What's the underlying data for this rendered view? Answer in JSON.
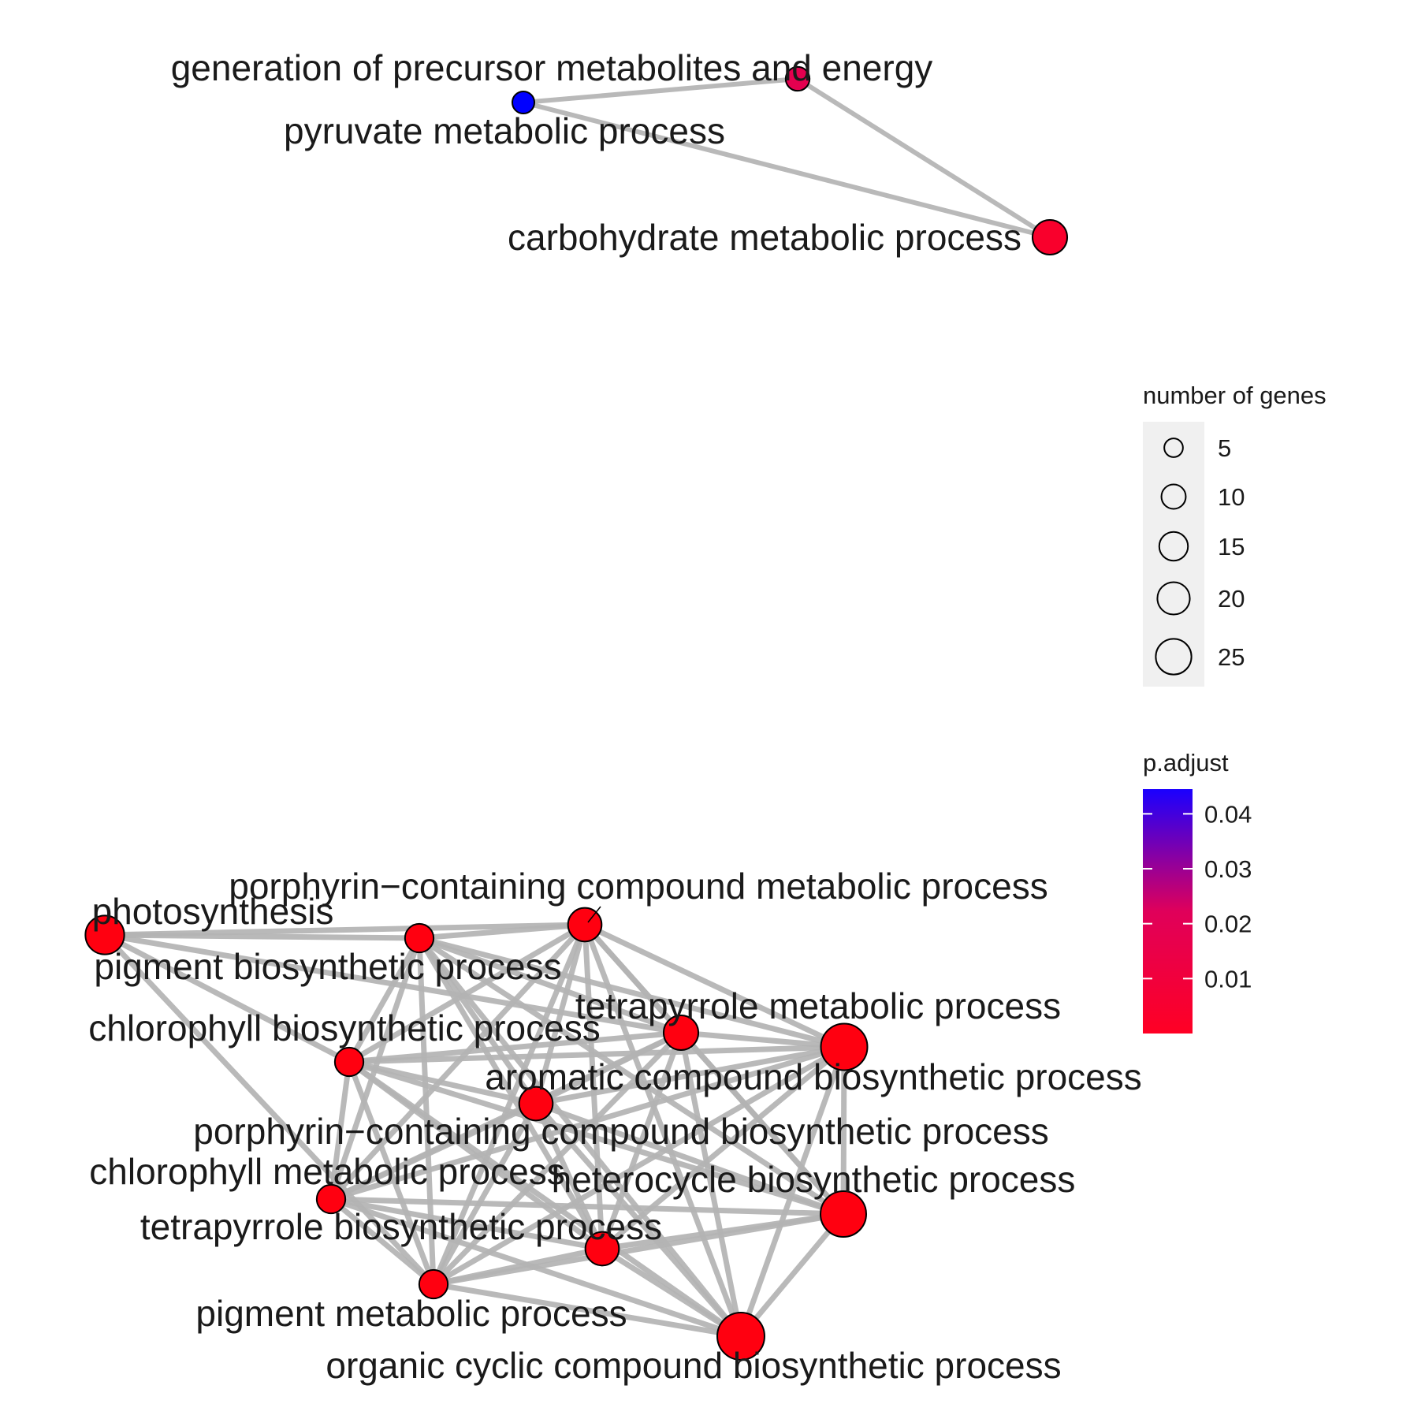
{
  "colors": {
    "edge": "#b3b3b3",
    "node_stroke": "#000000",
    "label": "#1a1a1a",
    "legend_key_bg": "#f0f0f0",
    "gradient_low": "#ff0024",
    "gradient_mid": "#e0005a",
    "gradient_high": "#1a00ff"
  },
  "graph": {
    "nodes": [
      {
        "id": "gen",
        "label": "generation of precursor metabolites and energy",
        "genes": 5,
        "p_adjust": 0.011,
        "color": "#e4004f"
      },
      {
        "id": "pyr",
        "label": "pyruvate metabolic process",
        "genes": 4,
        "p_adjust": 0.044,
        "color": "#0000ff"
      },
      {
        "id": "carb",
        "label": "carbohydrate metabolic process",
        "genes": 13,
        "p_adjust": 0.003,
        "color": "#f9002c"
      },
      {
        "id": "phot",
        "label": "photosynthesis",
        "genes": 17,
        "p_adjust": 0.001,
        "color": "#ff0010"
      },
      {
        "id": "porph_met",
        "label": "porphyrin−containing compound metabolic process",
        "genes": 12,
        "p_adjust": 0.001,
        "color": "#ff0010"
      },
      {
        "id": "pig_bio",
        "label": "pigment biosynthetic process",
        "genes": 8,
        "p_adjust": 0.001,
        "color": "#ff0010"
      },
      {
        "id": "tetra_met",
        "label": "tetrapyrrole metabolic process",
        "genes": 13,
        "p_adjust": 0.001,
        "color": "#ff0010"
      },
      {
        "id": "chl_bio",
        "label": "chlorophyll biosynthetic process",
        "genes": 8,
        "p_adjust": 0.001,
        "color": "#ff0010"
      },
      {
        "id": "aro_bio",
        "label": "aromatic compound biosynthetic process",
        "genes": 26,
        "p_adjust": 0.001,
        "color": "#ff0010"
      },
      {
        "id": "porph_bio",
        "label": "porphyrin−containing compound biosynthetic process",
        "genes": 12,
        "p_adjust": 0.001,
        "color": "#ff0010"
      },
      {
        "id": "chl_met",
        "label": "chlorophyll metabolic process",
        "genes": 8,
        "p_adjust": 0.001,
        "color": "#ff0010"
      },
      {
        "id": "het_bio",
        "label": "heterocycle biosynthetic process",
        "genes": 25,
        "p_adjust": 0.001,
        "color": "#ff0010"
      },
      {
        "id": "tetra_bio",
        "label": "tetrapyrrole biosynthetic process",
        "genes": 12,
        "p_adjust": 0.001,
        "color": "#ff0010"
      },
      {
        "id": "pig_met",
        "label": "pigment metabolic process",
        "genes": 8,
        "p_adjust": 0.001,
        "color": "#ff0010"
      },
      {
        "id": "org_bio",
        "label": "organic cyclic compound biosynthetic process",
        "genes": 27,
        "p_adjust": 0.001,
        "color": "#ff0010"
      }
    ],
    "edges": [
      [
        "pyr",
        "gen"
      ],
      [
        "gen",
        "carb"
      ],
      [
        "pyr",
        "carb"
      ],
      [
        "phot",
        "pig_bio"
      ],
      [
        "phot",
        "porph_met"
      ],
      [
        "phot",
        "chl_bio"
      ],
      [
        "phot",
        "pig_met"
      ],
      [
        "phot",
        "tetra_met"
      ],
      [
        "porph_met",
        "pig_bio"
      ],
      [
        "porph_met",
        "chl_bio"
      ],
      [
        "porph_met",
        "tetra_met"
      ],
      [
        "porph_met",
        "aro_bio"
      ],
      [
        "porph_met",
        "het_bio"
      ],
      [
        "porph_met",
        "tetra_bio"
      ],
      [
        "porph_met",
        "porph_bio"
      ],
      [
        "porph_met",
        "chl_met"
      ],
      [
        "porph_met",
        "pig_met"
      ],
      [
        "porph_met",
        "org_bio"
      ],
      [
        "pig_bio",
        "chl_bio"
      ],
      [
        "pig_bio",
        "tetra_met"
      ],
      [
        "pig_bio",
        "aro_bio"
      ],
      [
        "pig_bio",
        "porph_bio"
      ],
      [
        "pig_bio",
        "chl_met"
      ],
      [
        "pig_bio",
        "het_bio"
      ],
      [
        "pig_bio",
        "tetra_bio"
      ],
      [
        "pig_bio",
        "pig_met"
      ],
      [
        "pig_bio",
        "org_bio"
      ],
      [
        "tetra_met",
        "aro_bio"
      ],
      [
        "tetra_met",
        "chl_bio"
      ],
      [
        "tetra_met",
        "porph_bio"
      ],
      [
        "tetra_met",
        "het_bio"
      ],
      [
        "tetra_met",
        "tetra_bio"
      ],
      [
        "tetra_met",
        "chl_met"
      ],
      [
        "tetra_met",
        "pig_met"
      ],
      [
        "tetra_met",
        "org_bio"
      ],
      [
        "chl_bio",
        "aro_bio"
      ],
      [
        "chl_bio",
        "porph_bio"
      ],
      [
        "chl_bio",
        "het_bio"
      ],
      [
        "chl_bio",
        "chl_met"
      ],
      [
        "chl_bio",
        "tetra_bio"
      ],
      [
        "chl_bio",
        "pig_met"
      ],
      [
        "chl_bio",
        "org_bio"
      ],
      [
        "aro_bio",
        "porph_bio"
      ],
      [
        "aro_bio",
        "het_bio"
      ],
      [
        "aro_bio",
        "tetra_bio"
      ],
      [
        "aro_bio",
        "chl_met"
      ],
      [
        "aro_bio",
        "pig_met"
      ],
      [
        "aro_bio",
        "org_bio"
      ],
      [
        "porph_bio",
        "het_bio"
      ],
      [
        "porph_bio",
        "chl_met"
      ],
      [
        "porph_bio",
        "tetra_bio"
      ],
      [
        "porph_bio",
        "pig_met"
      ],
      [
        "porph_bio",
        "org_bio"
      ],
      [
        "het_bio",
        "chl_met"
      ],
      [
        "het_bio",
        "tetra_bio"
      ],
      [
        "het_bio",
        "pig_met"
      ],
      [
        "het_bio",
        "org_bio"
      ],
      [
        "chl_met",
        "tetra_bio"
      ],
      [
        "chl_met",
        "pig_met"
      ],
      [
        "chl_met",
        "org_bio"
      ],
      [
        "tetra_bio",
        "pig_met"
      ],
      [
        "tetra_bio",
        "org_bio"
      ],
      [
        "pig_met",
        "org_bio"
      ]
    ]
  },
  "legend": {
    "size_title": "number of genes",
    "size_items": [
      {
        "label": "5",
        "genes": 5
      },
      {
        "label": "10",
        "genes": 10
      },
      {
        "label": "15",
        "genes": 15
      },
      {
        "label": "20",
        "genes": 20
      },
      {
        "label": "25",
        "genes": 25
      }
    ],
    "color_title": "p.adjust",
    "color_ticks": [
      {
        "label": "0.04",
        "value": 0.04
      },
      {
        "label": "0.03",
        "value": 0.03
      },
      {
        "label": "0.02",
        "value": 0.02
      },
      {
        "label": "0.01",
        "value": 0.01
      }
    ],
    "color_range": [
      0.0,
      0.0445
    ]
  }
}
